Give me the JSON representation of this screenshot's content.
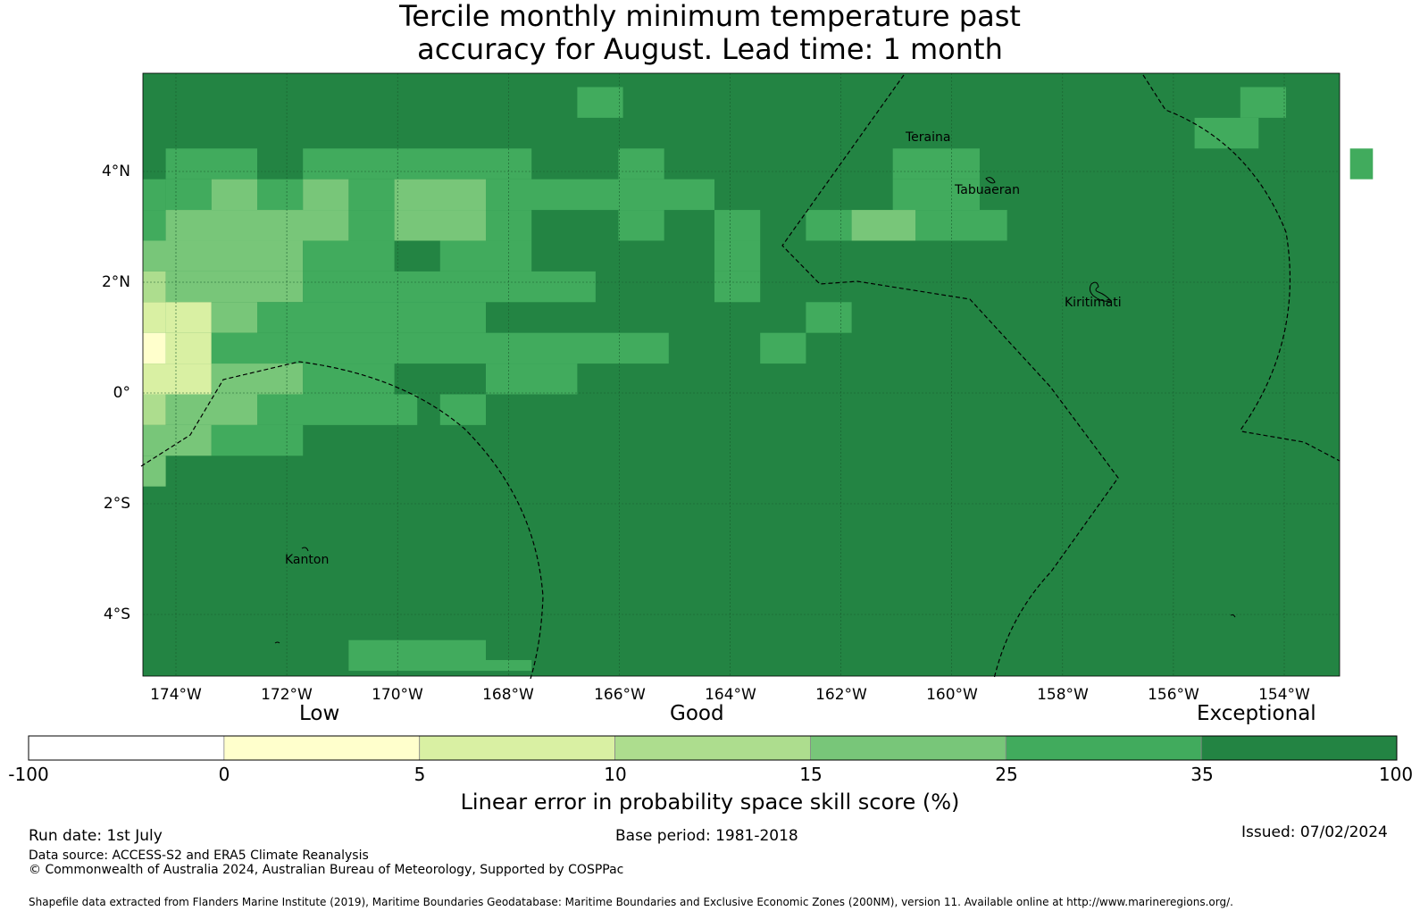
{
  "title": {
    "line1": "Tercile monthly minimum temperature past",
    "line2": "accuracy for August. Lead time: 1 month"
  },
  "map": {
    "lat_range": [
      -5.1,
      5.8
    ],
    "lon_range": [
      -174.6,
      -153.0
    ],
    "lat_ticks": [
      "4°N",
      "2°N",
      "0°",
      "2°S",
      "4°S"
    ],
    "lon_ticks": [
      "174°W",
      "172°W",
      "170°W",
      "168°W",
      "166°W",
      "164°W",
      "162°W",
      "160°W",
      "158°W",
      "156°W",
      "154°W"
    ],
    "places": [
      "Teraina",
      "Tabuaeran",
      "Kiritimati",
      "Kanton"
    ],
    "base_color": "#238443"
  },
  "colorbar": {
    "categories": [
      "Low",
      "Good",
      "Exceptional"
    ],
    "ticks": [
      "-100",
      "0",
      "5",
      "10",
      "15",
      "25",
      "35",
      "100"
    ],
    "colors": [
      "#ffffff",
      "#ffffcc",
      "#d9f0a3",
      "#addd8e",
      "#78c679",
      "#41ab5d",
      "#238443"
    ],
    "label": "Linear error in probability space skill score (%)"
  },
  "footer": {
    "run_date": "Run date: 1st July",
    "base_period": "Base period: 1981-2018",
    "issued": "Issued: 07/02/2024",
    "data_source": "Data source: ACCESS-S2 and ERA5 Climate Reanalysis",
    "copyright": "© Commonwealth of Australia 2024, Australian Bureau of Meteorology, Supported by COSPPac",
    "shapefile": "Shapefile data extracted from Flanders Marine Institute (2019), Maritime Boundaries Geodatabase: Maritime Boundaries and Exclusive Economic Zones (200NM), version 11. Available online at http://www.marineregions.org/."
  }
}
